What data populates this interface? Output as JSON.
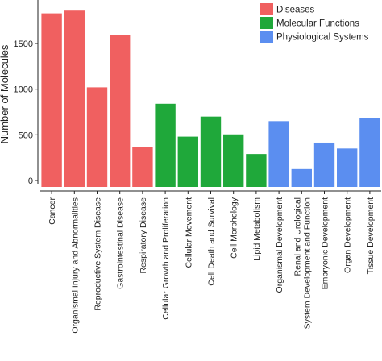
{
  "chart_data": {
    "type": "bar",
    "title": "",
    "xlabel": "",
    "ylabel": "Number of Molecules",
    "ylim": [
      0,
      1900
    ],
    "yticks": [
      0,
      500,
      1000,
      1500
    ],
    "grid": false,
    "legend_position": "top-right",
    "categories": [
      "Cancer",
      "Organismal Injury and Abnormalities",
      "Reproductive System Disease",
      "Gastrointestinal Disease",
      "Respiratory Disease",
      "Cellular Growth and Proliferation",
      "Cellular Movement",
      "Cell Death and Survival",
      "Cell Morphology",
      "Lipid Metabolism",
      "Organismal Development",
      "Renal and Urological\nSystem Development and Function",
      "Embryonic Development",
      "Organ Development",
      "Tissue Development"
    ],
    "values": [
      1830,
      1860,
      1020,
      1590,
      370,
      840,
      480,
      700,
      505,
      290,
      650,
      125,
      415,
      350,
      680
    ],
    "groups": [
      "Diseases",
      "Diseases",
      "Diseases",
      "Diseases",
      "Diseases",
      "Molecular Functions",
      "Molecular Functions",
      "Molecular Functions",
      "Molecular Functions",
      "Molecular Functions",
      "Physiological Systems",
      "Physiological Systems",
      "Physiological Systems",
      "Physiological Systems",
      "Physiological Systems"
    ],
    "legend": [
      {
        "name": "Diseases",
        "color": "#f06060"
      },
      {
        "name": "Molecular Functions",
        "color": "#1fa83a"
      },
      {
        "name": "Physiological Systems",
        "color": "#5b8ef0"
      }
    ]
  }
}
